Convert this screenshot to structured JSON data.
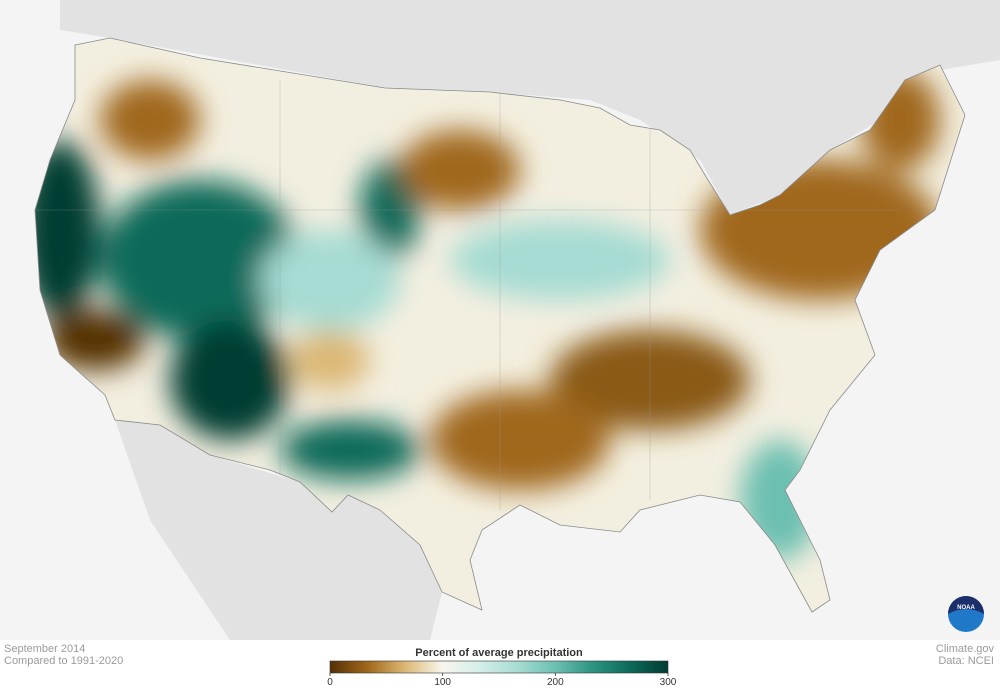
{
  "caption": {
    "period": "September 2014",
    "baseline": "Compared to 1991-2020"
  },
  "legend": {
    "title": "Percent of average precipitation",
    "lim": [
      0,
      300
    ],
    "ticks": [
      0,
      100,
      200,
      300
    ],
    "colors": [
      "#543005",
      "#a0671c",
      "#dcb874",
      "#f9f6ee",
      "#d4eee9",
      "#a6dcd3",
      "#6cc0b1",
      "#2c9383",
      "#0d6a5a",
      "#003c30"
    ]
  },
  "credits": {
    "site": "Climate.gov",
    "source": "Data: NCEI"
  },
  "logo": "NOAA"
}
